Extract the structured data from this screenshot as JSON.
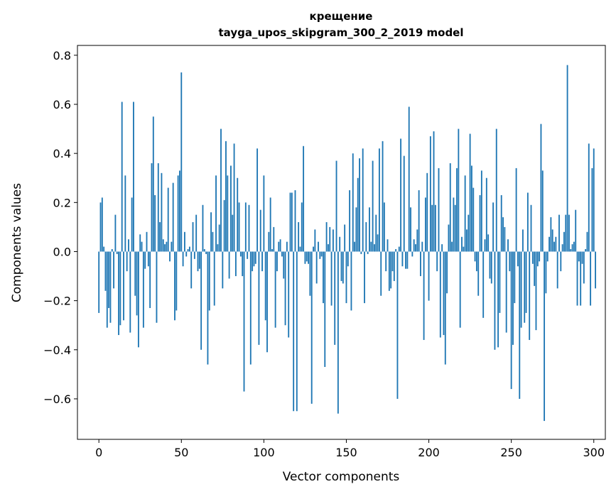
{
  "chart_data": {
    "type": "bar",
    "title_line1": "крещение",
    "title_line2": "tayga_upos_skipgram_300_2_2019 model",
    "xlabel": "Vector components",
    "ylabel": "Components values",
    "xlim": [
      -13,
      307
    ],
    "ylim": [
      -0.765,
      0.84
    ],
    "x_ticks": [
      0,
      50,
      100,
      150,
      200,
      250,
      300
    ],
    "y_ticks": [
      0.8,
      0.6,
      0.4,
      0.2,
      0.0,
      -0.2,
      -0.4,
      -0.6
    ],
    "y_tick_labels": [
      "0.8",
      "0.6",
      "0.4",
      "0.2",
      "0.0",
      "−0.2",
      "−0.4",
      "−0.6"
    ],
    "bar_color": "#1f77b4",
    "grid": false,
    "values": [
      -0.25,
      0.2,
      0.22,
      0.02,
      -0.16,
      -0.31,
      -0.23,
      -0.29,
      0.01,
      -0.15,
      0.15,
      -0.01,
      -0.34,
      -0.3,
      0.61,
      -0.28,
      0.31,
      -0.08,
      0.05,
      -0.33,
      0.22,
      0.61,
      -0.18,
      -0.26,
      -0.39,
      0.07,
      0.04,
      -0.31,
      -0.07,
      0.08,
      -0.06,
      -0.23,
      0.36,
      0.55,
      0.23,
      -0.29,
      0.36,
      0.12,
      0.32,
      0.05,
      0.03,
      0.04,
      0.26,
      -0.04,
      0.04,
      0.28,
      -0.28,
      -0.24,
      0.31,
      0.33,
      0.73,
      -0.06,
      0.08,
      -0.02,
      0.01,
      0.02,
      -0.15,
      0.12,
      -0.03,
      0.15,
      -0.08,
      -0.07,
      -0.4,
      0.19,
      0.01,
      -0.01,
      -0.46,
      -0.24,
      0.16,
      0.08,
      -0.22,
      0.31,
      0.03,
      0.11,
      0.5,
      -0.15,
      0.21,
      0.45,
      0.31,
      -0.11,
      0.35,
      0.15,
      0.44,
      -0.1,
      0.3,
      0.2,
      -0.02,
      -0.1,
      -0.57,
      0.2,
      -0.03,
      0.19,
      -0.46,
      -0.08,
      -0.06,
      -0.05,
      0.42,
      -0.38,
      0.17,
      -0.08,
      0.31,
      -0.28,
      -0.41,
      0.08,
      0.22,
      0.01,
      0.1,
      -0.31,
      -0.08,
      0.04,
      0.05,
      -0.02,
      -0.11,
      -0.3,
      0.04,
      -0.35,
      0.24,
      0.24,
      -0.65,
      0.25,
      -0.65,
      0.12,
      0.02,
      0.2,
      0.43,
      -0.05,
      -0.04,
      -0.05,
      -0.18,
      -0.62,
      0.02,
      0.09,
      -0.13,
      0.04,
      -0.03,
      -0.02,
      -0.21,
      -0.47,
      0.12,
      0.03,
      0.1,
      -0.22,
      0.09,
      -0.38,
      0.37,
      -0.66,
      0.06,
      -0.12,
      -0.13,
      0.11,
      -0.21,
      -0.06,
      0.25,
      -0.24,
      0.4,
      0.04,
      0.18,
      0.3,
      0.38,
      -0.01,
      0.42,
      -0.21,
      0.12,
      -0.01,
      0.18,
      0.04,
      0.37,
      0.03,
      0.15,
      0.07,
      0.42,
      -0.18,
      0.45,
      0.2,
      -0.08,
      0.05,
      -0.16,
      -0.15,
      -0.08,
      -0.12,
      0.01,
      -0.6,
      0.02,
      0.46,
      -0.06,
      0.39,
      -0.07,
      -0.07,
      0.59,
      0.18,
      -0.02,
      0.05,
      0.03,
      0.09,
      0.25,
      -0.1,
      0.04,
      -0.36,
      0.22,
      0.32,
      -0.2,
      0.47,
      0.19,
      0.49,
      0.19,
      -0.08,
      0.34,
      -0.35,
      0.03,
      -0.34,
      -0.46,
      -0.17,
      0.11,
      0.36,
      0.04,
      0.22,
      0.19,
      0.34,
      0.5,
      -0.31,
      0.06,
      0.02,
      0.31,
      0.09,
      0.15,
      0.48,
      0.35,
      0.26,
      -0.04,
      -0.08,
      -0.18,
      0.23,
      0.33,
      -0.27,
      0.05,
      0.3,
      0.07,
      -0.11,
      -0.13,
      0.2,
      -0.4,
      0.5,
      -0.39,
      -0.25,
      0.23,
      0.14,
      0.1,
      -0.33,
      0.05,
      -0.08,
      -0.56,
      -0.38,
      -0.21,
      0.34,
      -0.06,
      -0.6,
      -0.31,
      0.09,
      -0.29,
      -0.25,
      0.24,
      -0.36,
      0.19,
      -0.05,
      -0.14,
      -0.32,
      -0.06,
      -0.04,
      0.52,
      0.33,
      -0.69,
      -0.17,
      -0.04,
      0.06,
      0.14,
      0.09,
      0.04,
      0.06,
      -0.15,
      0.15,
      -0.08,
      0.03,
      0.08,
      0.15,
      0.76,
      0.15,
      0.01,
      0.03,
      0.04,
      0.17,
      -0.22,
      -0.04,
      -0.22,
      -0.05,
      -0.13,
      0.01,
      0.08,
      0.44,
      -0.22,
      0.34,
      0.42,
      -0.15
    ]
  }
}
